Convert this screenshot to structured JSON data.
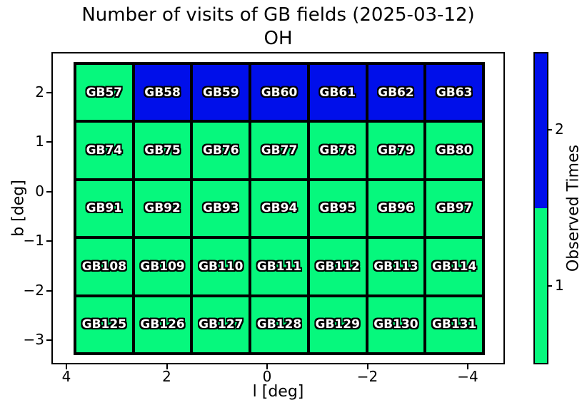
{
  "title": {
    "line1": "Number of visits of GB fields (2025-03-12)",
    "line2": "OH"
  },
  "chart_data": {
    "type": "heatmap",
    "title": "Number of visits of GB fields (2025-03-12) OH",
    "xlabel": "l [deg]",
    "ylabel": "b [deg]",
    "x_ticks": [
      "4",
      "2",
      "0",
      "−2",
      "−4"
    ],
    "y_ticks": [
      "2",
      "1",
      "0",
      "−1",
      "−2",
      "−3"
    ],
    "x_axis_inverted": true,
    "grid_rows": 5,
    "grid_cols": 7,
    "value_colors": {
      "1": "#06F87D",
      "2": "#000FEA"
    },
    "rows": [
      {
        "fields": [
          {
            "label": "GB57",
            "value": 1
          },
          {
            "label": "GB58",
            "value": 2
          },
          {
            "label": "GB59",
            "value": 2
          },
          {
            "label": "GB60",
            "value": 2
          },
          {
            "label": "GB61",
            "value": 2
          },
          {
            "label": "GB62",
            "value": 2
          },
          {
            "label": "GB63",
            "value": 2
          }
        ]
      },
      {
        "fields": [
          {
            "label": "GB74",
            "value": 1
          },
          {
            "label": "GB75",
            "value": 1
          },
          {
            "label": "GB76",
            "value": 1
          },
          {
            "label": "GB77",
            "value": 1
          },
          {
            "label": "GB78",
            "value": 1
          },
          {
            "label": "GB79",
            "value": 1
          },
          {
            "label": "GB80",
            "value": 1
          }
        ]
      },
      {
        "fields": [
          {
            "label": "GB91",
            "value": 1
          },
          {
            "label": "GB92",
            "value": 1
          },
          {
            "label": "GB93",
            "value": 1
          },
          {
            "label": "GB94",
            "value": 1
          },
          {
            "label": "GB95",
            "value": 1
          },
          {
            "label": "GB96",
            "value": 1
          },
          {
            "label": "GB97",
            "value": 1
          }
        ]
      },
      {
        "fields": [
          {
            "label": "GB108",
            "value": 1
          },
          {
            "label": "GB109",
            "value": 1
          },
          {
            "label": "GB110",
            "value": 1
          },
          {
            "label": "GB111",
            "value": 1
          },
          {
            "label": "GB112",
            "value": 1
          },
          {
            "label": "GB113",
            "value": 1
          },
          {
            "label": "GB114",
            "value": 1
          }
        ]
      },
      {
        "fields": [
          {
            "label": "GB125",
            "value": 1
          },
          {
            "label": "GB126",
            "value": 1
          },
          {
            "label": "GB127",
            "value": 1
          },
          {
            "label": "GB128",
            "value": 1
          },
          {
            "label": "GB129",
            "value": 1
          },
          {
            "label": "GB130",
            "value": 1
          },
          {
            "label": "GB131",
            "value": 1
          }
        ]
      }
    ],
    "colorbar": {
      "label": "Observed Times",
      "ticks": [
        "2",
        "1"
      ],
      "segment_colors_top_to_bottom": [
        "#000FEA",
        "#06F87D"
      ],
      "legend_position": "right"
    }
  }
}
